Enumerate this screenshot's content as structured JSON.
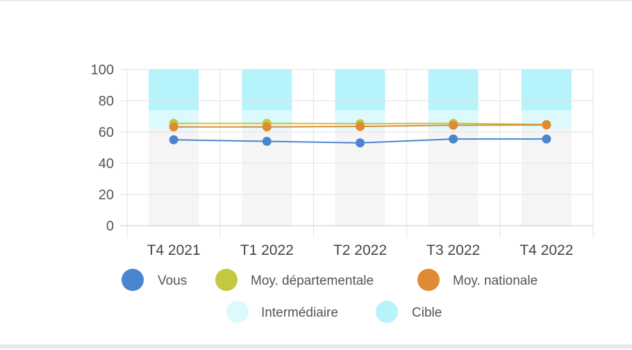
{
  "chart_data": {
    "type": "line",
    "title": "",
    "xlabel": "",
    "ylabel": "",
    "ylim": [
      0,
      100
    ],
    "yticks": [
      0,
      20,
      40,
      60,
      80,
      100
    ],
    "grid": true,
    "legend_position": "bottom",
    "categories": [
      "T4 2021",
      "T1 2022",
      "T2 2022",
      "T3 2022",
      "T4 2022"
    ],
    "series": [
      {
        "name": "Vous",
        "color": "#4a86d0",
        "values": [
          55,
          54,
          53,
          55.5,
          55.5
        ]
      },
      {
        "name": "Moy. départementale",
        "color": "#c2c93f",
        "values": [
          65.5,
          65.5,
          65.3,
          65.5,
          64.8
        ]
      },
      {
        "name": "Moy. nationale",
        "color": "#e08a33",
        "values": [
          63.2,
          63.2,
          63.5,
          64.3,
          64.5
        ]
      }
    ],
    "bands": [
      {
        "name": "Intermédiaire",
        "color": "#dcf9fd",
        "from": 62,
        "to": 74
      },
      {
        "name": "Cible",
        "color": "#b7f3fa",
        "from": 74,
        "to": 100
      }
    ],
    "base_band_color": "#f5f5f5"
  }
}
